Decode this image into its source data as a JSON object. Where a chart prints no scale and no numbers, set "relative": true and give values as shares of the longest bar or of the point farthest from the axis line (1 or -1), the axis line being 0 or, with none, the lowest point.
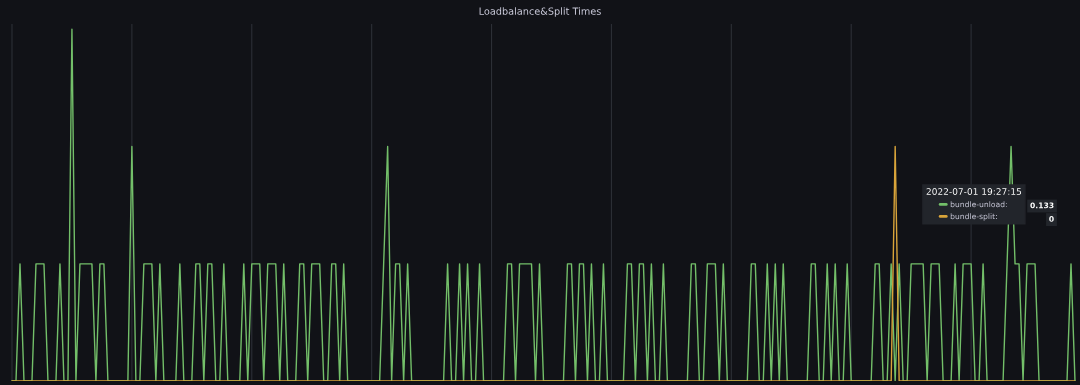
{
  "chart_data": {
    "type": "line",
    "title": "Loadbalance&Split Times",
    "relative": true,
    "grid": "x",
    "legend": "right",
    "legend_title": "2022-07-01 19:27:15",
    "annotations": [
      "0.133",
      "0"
    ],
    "categories": [
      null,
      null,
      null,
      null,
      null,
      null,
      null,
      null,
      null,
      null,
      null,
      null,
      null,
      null,
      null,
      null,
      null,
      null,
      null,
      null,
      null,
      null,
      null,
      null,
      null,
      null,
      null,
      null,
      null,
      null,
      null,
      null,
      null,
      null,
      null,
      null,
      null,
      null,
      null,
      null,
      null,
      null,
      null,
      null,
      null,
      null,
      null,
      null,
      null,
      null,
      null,
      null,
      null,
      null,
      null,
      null,
      null,
      null,
      null,
      null,
      null,
      null,
      null,
      null,
      null,
      null,
      null,
      null,
      null,
      null,
      null,
      null,
      null,
      null,
      null,
      null,
      null,
      null,
      null,
      null,
      null,
      null,
      null,
      null,
      null,
      null,
      null,
      null,
      null,
      null,
      null,
      null,
      null,
      null,
      null,
      null,
      null,
      null,
      null,
      null,
      null,
      null,
      null,
      null,
      null,
      null,
      null,
      null,
      null,
      null,
      null,
      null,
      null,
      null,
      null,
      null,
      null,
      null,
      null,
      null,
      null,
      null,
      null,
      null,
      null,
      null,
      null,
      null,
      null,
      null,
      null,
      null,
      null,
      null,
      null,
      null,
      null,
      null,
      null,
      null,
      null,
      null,
      null,
      null,
      null,
      null,
      null,
      null,
      null,
      null,
      null,
      null,
      null,
      null,
      null,
      null,
      null,
      null,
      null,
      null,
      null,
      null,
      null,
      null,
      null,
      null,
      null,
      null,
      null,
      null,
      null,
      null,
      null,
      null,
      null,
      null,
      null,
      null,
      null,
      null,
      null,
      null,
      null,
      null,
      null,
      null,
      null,
      null,
      null,
      null,
      null,
      null,
      null,
      null,
      null,
      null,
      null,
      null,
      null,
      null,
      null,
      null,
      null,
      null,
      null,
      null,
      null,
      null,
      null,
      null,
      null,
      null,
      null,
      null,
      null,
      null,
      null,
      null,
      null,
      null,
      null,
      null,
      null,
      null,
      null,
      null,
      null,
      null,
      null,
      null,
      null,
      null,
      null,
      null,
      null,
      null,
      null,
      null,
      null,
      null,
      null,
      null,
      null,
      null,
      null,
      null,
      null,
      null,
      null,
      null,
      null,
      null,
      null,
      null,
      null,
      null,
      null,
      null,
      null,
      null,
      null,
      null,
      null,
      null,
      null,
      null,
      null
    ],
    "series": [
      {
        "name": "bundle-unload:",
        "color": "#73bf69",
        "values": [
          0,
          0,
          0.333,
          0,
          0,
          0,
          0.333,
          0.333,
          0.333,
          0,
          0,
          0,
          0.333,
          0,
          0,
          1,
          0,
          0.333,
          0.333,
          0.333,
          0.333,
          0,
          0.333,
          0.333,
          0,
          0,
          0,
          0,
          0,
          0,
          0.667,
          0,
          0,
          0.333,
          0.333,
          0.333,
          0,
          0.333,
          0,
          0,
          0,
          0,
          0.333,
          0,
          0,
          0,
          0.333,
          0.333,
          0,
          0.333,
          0.333,
          0,
          0,
          0.333,
          0,
          0,
          0,
          0,
          0.333,
          0,
          0.333,
          0.333,
          0.333,
          0,
          0.333,
          0.333,
          0.333,
          0,
          0.333,
          0,
          0,
          0,
          0.333,
          0.333,
          0,
          0.333,
          0.333,
          0.333,
          0,
          0,
          0.333,
          0.333,
          0,
          0.333,
          0,
          0,
          0,
          0,
          0,
          0,
          0,
          0,
          0,
          0.333,
          0.667,
          0,
          0.333,
          0.333,
          0,
          0.333,
          0,
          0,
          0,
          0,
          0,
          0,
          0,
          0,
          0,
          0.333,
          0,
          0,
          0.333,
          0,
          0.333,
          0,
          0,
          0.333,
          0,
          0,
          0,
          0,
          0,
          0,
          0.333,
          0.333,
          0,
          0.333,
          0.333,
          0.333,
          0.333,
          0,
          0.333,
          0,
          0,
          0,
          0,
          0,
          0,
          0.333,
          0.333,
          0,
          0.333,
          0.333,
          0,
          0.333,
          0,
          0,
          0.333,
          0,
          0,
          0,
          0,
          0,
          0.333,
          0.333,
          0,
          0.333,
          0.333,
          0,
          0.333,
          0,
          0,
          0.333,
          0,
          0,
          0,
          0,
          0,
          0,
          0.333,
          0.333,
          0,
          0,
          0.333,
          0.333,
          0.333,
          0,
          0.333,
          0,
          0,
          0,
          0,
          0,
          0,
          0.333,
          0.333,
          0,
          0,
          0.333,
          0,
          0.333,
          0,
          0.333,
          0,
          0,
          0,
          0,
          0,
          0,
          0.333,
          0.333,
          0,
          0,
          0.333,
          0,
          0.333,
          0,
          0,
          0.333,
          0,
          0,
          0,
          0,
          0,
          0,
          0.333,
          0.333,
          0,
          0,
          0.333,
          0,
          0.333,
          0,
          0,
          0.333,
          0.333,
          0.333,
          0.333,
          0,
          0.333,
          0.333,
          0.333,
          0,
          0,
          0,
          0.333,
          0,
          0.333,
          0.333,
          0.333,
          0,
          0,
          0.333,
          0,
          0,
          0,
          0,
          0,
          0.333,
          0.667,
          0.333,
          0.333,
          0,
          0.333,
          0.333,
          0.333,
          0,
          0,
          0,
          0,
          0,
          0,
          0,
          0,
          0.333,
          0
        ]
      },
      {
        "name": "bundle-split:",
        "color": "#d9a43a",
        "values": [
          0,
          0,
          0,
          0,
          0,
          0,
          0,
          0,
          0,
          0,
          0,
          0,
          0,
          0,
          0,
          0,
          0,
          0,
          0,
          0,
          0,
          0,
          0,
          0,
          0,
          0,
          0,
          0,
          0,
          0,
          0,
          0,
          0,
          0,
          0,
          0,
          0,
          0,
          0,
          0,
          0,
          0,
          0,
          0,
          0,
          0,
          0,
          0,
          0,
          0,
          0,
          0,
          0,
          0,
          0,
          0,
          0,
          0,
          0,
          0,
          0,
          0,
          0,
          0,
          0,
          0,
          0,
          0,
          0,
          0,
          0,
          0,
          0,
          0,
          0,
          0,
          0,
          0,
          0,
          0,
          0,
          0,
          0,
          0,
          0,
          0,
          0,
          0,
          0,
          0,
          0,
          0,
          0,
          0,
          0,
          0,
          0,
          0,
          0,
          0,
          0,
          0,
          0,
          0,
          0,
          0,
          0,
          0,
          0,
          0,
          0,
          0,
          0,
          0,
          0,
          0,
          0,
          0,
          0,
          0,
          0,
          0,
          0,
          0,
          0,
          0,
          0,
          0,
          0,
          0,
          0,
          0,
          0,
          0,
          0,
          0,
          0,
          0,
          0,
          0,
          0,
          0,
          0,
          0,
          0,
          0,
          0,
          0,
          0,
          0,
          0,
          0,
          0,
          0,
          0,
          0,
          0,
          0,
          0,
          0,
          0,
          0,
          0,
          0,
          0,
          0,
          0,
          0,
          0,
          0,
          0,
          0,
          0,
          0,
          0,
          0,
          0,
          0,
          0,
          0,
          0,
          0,
          0,
          0,
          0,
          0,
          0,
          0,
          0,
          0,
          0,
          0,
          0,
          0,
          0,
          0,
          0,
          0,
          0,
          0,
          0,
          0,
          0,
          0,
          0,
          0,
          0,
          0,
          0,
          0,
          0,
          0,
          0,
          0,
          0,
          0,
          0,
          0,
          0,
          0,
          0,
          0.667,
          0,
          0,
          0,
          0,
          0,
          0,
          0,
          0,
          0,
          0,
          0,
          0,
          0,
          0,
          0,
          0,
          0,
          0,
          0,
          0,
          0,
          0,
          0,
          0,
          0,
          0,
          0,
          0,
          0,
          0,
          0,
          0,
          0,
          0,
          0,
          0,
          0,
          0,
          0,
          0,
          0,
          0,
          0,
          0,
          0
        ]
      }
    ]
  }
}
